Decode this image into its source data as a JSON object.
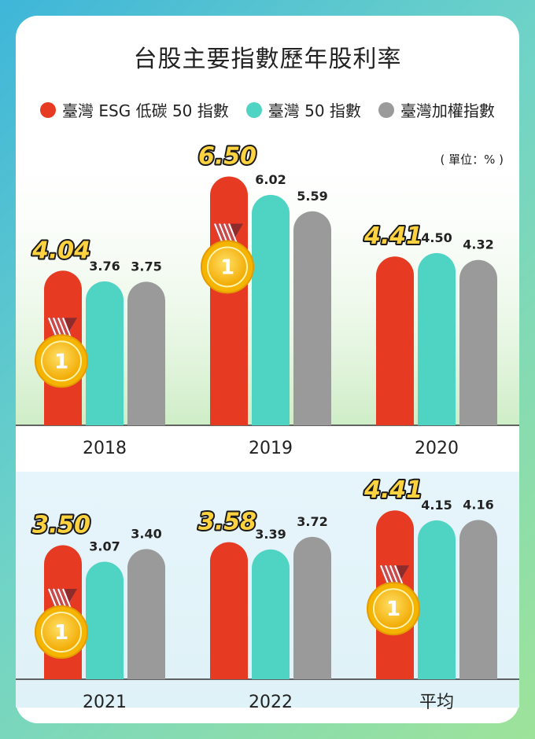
{
  "chart_data": {
    "type": "bar",
    "title": "台股主要指數歷年股利率",
    "unit_label": "( 單位：% )",
    "categories": [
      "2018",
      "2019",
      "2020",
      "2021",
      "2022",
      "平均"
    ],
    "series": [
      {
        "name": "臺灣 ESG 低碳 50 指數",
        "color": "#e63b22",
        "values": [
          4.04,
          6.5,
          4.41,
          3.5,
          3.58,
          4.41
        ]
      },
      {
        "name": "臺灣 50 指數",
        "color": "#4fd3c2",
        "values": [
          3.76,
          6.02,
          4.5,
          3.07,
          3.39,
          4.15
        ]
      },
      {
        "name": "臺灣加權指數",
        "color": "#9a9a9a",
        "values": [
          3.75,
          5.59,
          4.32,
          3.4,
          3.72,
          4.16
        ]
      }
    ],
    "value_labels": [
      [
        "4.04",
        "3.76",
        "3.75"
      ],
      [
        "6.50",
        "6.02",
        "5.59"
      ],
      [
        "4.41",
        "4.50",
        "4.32"
      ],
      [
        "3.50",
        "3.07",
        "3.40"
      ],
      [
        "3.58",
        "3.39",
        "3.72"
      ],
      [
        "4.41",
        "4.15",
        "4.16"
      ]
    ],
    "medal_categories": [
      "2018",
      "2019",
      "2021",
      "平均"
    ],
    "medal_text": "1",
    "highlight_series": "臺灣 ESG 低碳 50 指數"
  }
}
